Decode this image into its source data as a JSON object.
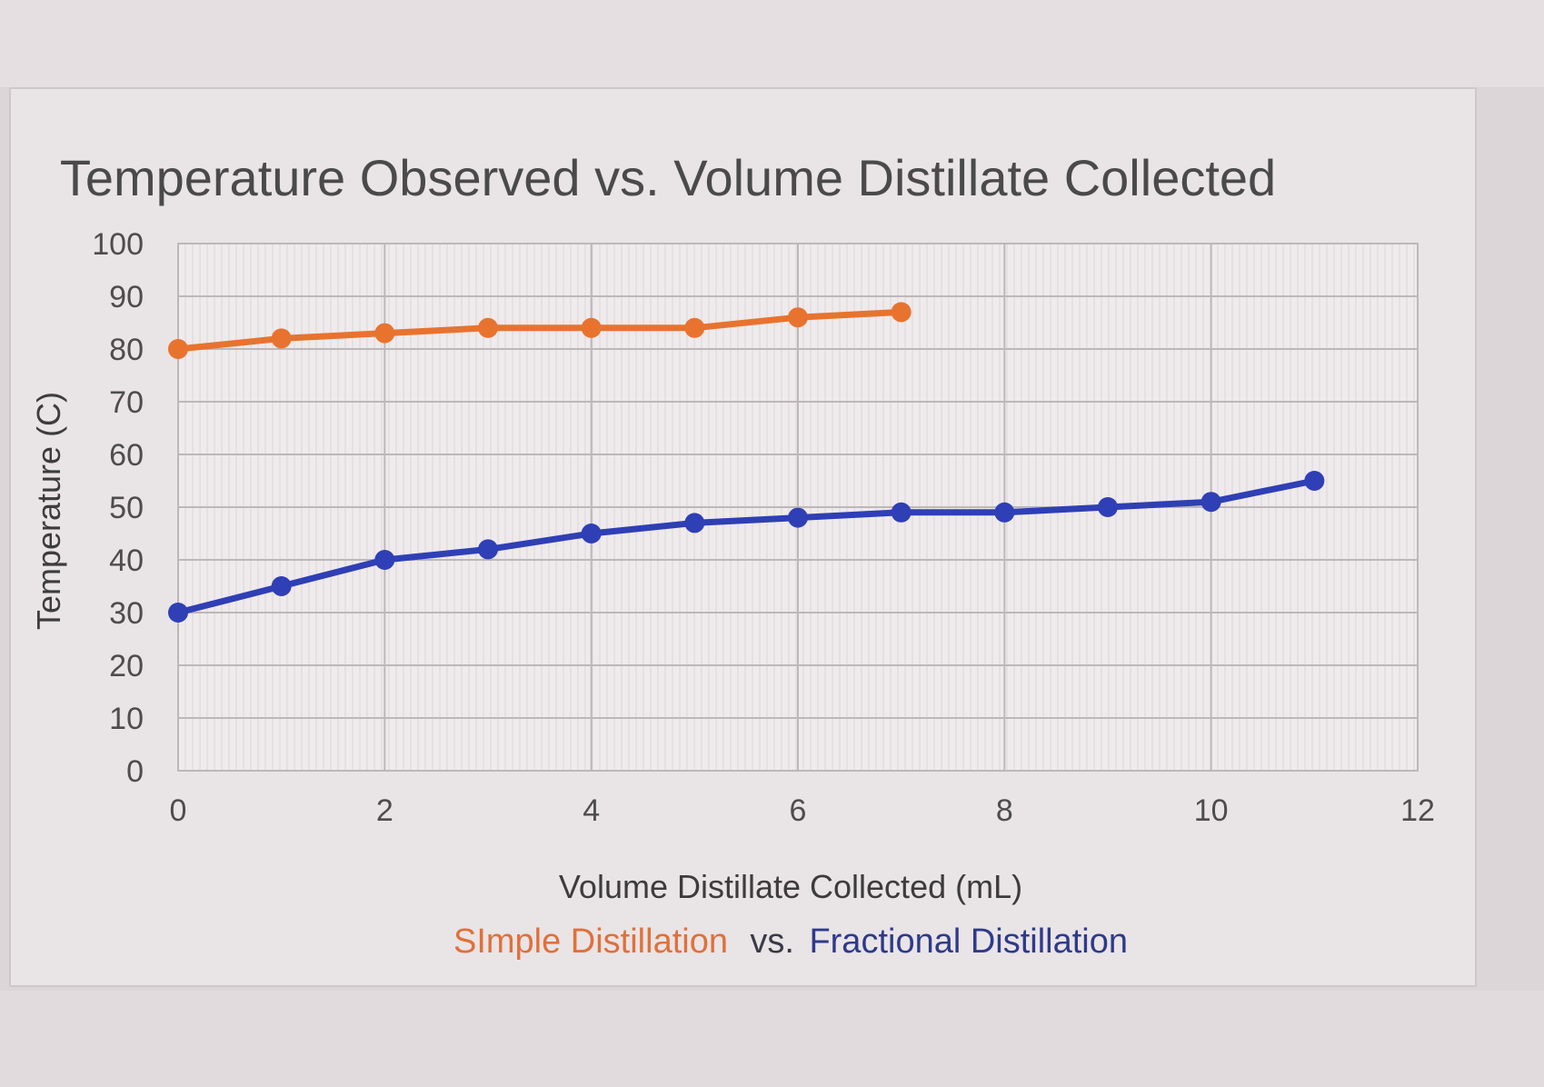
{
  "chart_data": {
    "type": "line",
    "title": "Temperature Observed vs. Volume Distillate Collected",
    "xlabel": "Volume Distillate Collected (mL)",
    "ylabel": "Temperature (C)",
    "xlim": [
      0,
      12
    ],
    "ylim": [
      0,
      100
    ],
    "x_ticks": [
      "0",
      "2",
      "4",
      "6",
      "8",
      "10",
      "12"
    ],
    "y_ticks": [
      "0",
      "10",
      "20",
      "30",
      "40",
      "50",
      "60",
      "70",
      "80",
      "90",
      "100"
    ],
    "grid": true,
    "legend": {
      "simple": "SImple Distillation",
      "separator": "vs.",
      "fractional": "Fractional Distillation",
      "placement": "bottom"
    },
    "series": [
      {
        "color": "#e8732f",
        "x": [
          0,
          1,
          2,
          3,
          4,
          5,
          6,
          7
        ],
        "values": [
          80,
          82,
          83,
          84,
          84,
          84,
          86,
          87
        ]
      },
      {
        "color": "#2f3fb5",
        "x": [
          0,
          1,
          2,
          3,
          4,
          5,
          6,
          7,
          8,
          9,
          10,
          11
        ],
        "values": [
          30,
          35,
          40,
          42,
          45,
          47,
          48,
          49,
          49,
          50,
          51,
          55
        ]
      }
    ]
  }
}
